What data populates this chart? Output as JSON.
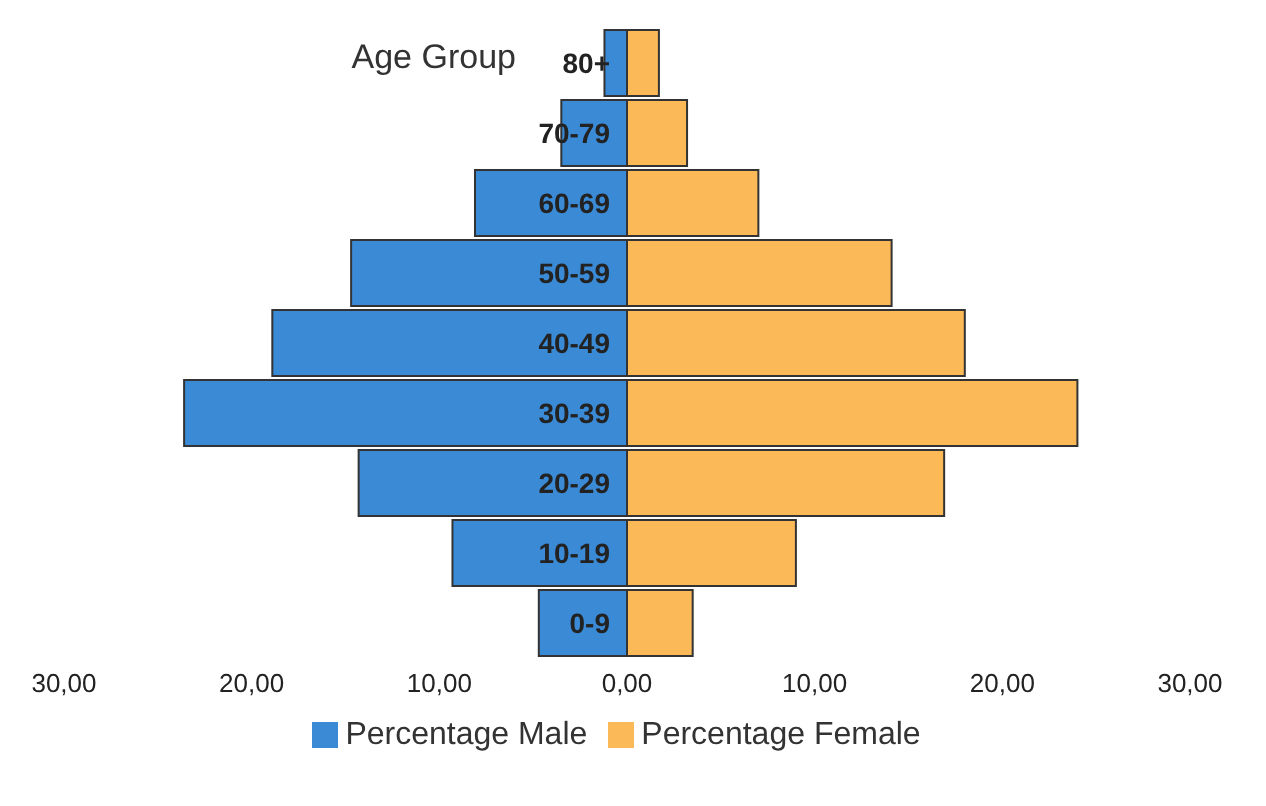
{
  "chart_data": {
    "type": "bar",
    "orientation": "horizontal",
    "stacked": true,
    "ylabel": "Age Group",
    "categories": [
      "80+",
      "70-79",
      "60-69",
      "50-59",
      "40-49",
      "30-39",
      "20-29",
      "10-19",
      "0-9"
    ],
    "series": [
      {
        "name": "Percentage Male",
        "color": "#3a8ad6",
        "values": [
          -1.2,
          -3.5,
          -8.1,
          -14.7,
          -18.9,
          -23.6,
          -14.3,
          -9.3,
          -4.7
        ]
      },
      {
        "name": "Percentage Female",
        "color": "#fbb957",
        "values": [
          1.7,
          3.2,
          7.0,
          14.1,
          18.0,
          24.0,
          16.9,
          9.0,
          3.5
        ]
      }
    ],
    "xlim": [
      -30,
      30
    ],
    "xticks": [
      {
        "value": -30,
        "label": "30,00"
      },
      {
        "value": -20,
        "label": "20,00"
      },
      {
        "value": -10,
        "label": "10,00"
      },
      {
        "value": 0,
        "label": "0,00"
      },
      {
        "value": 10,
        "label": "10,00"
      },
      {
        "value": 20,
        "label": "20,00"
      },
      {
        "value": 30,
        "label": "30,00"
      }
    ],
    "grid": false,
    "legend": "bottom"
  }
}
